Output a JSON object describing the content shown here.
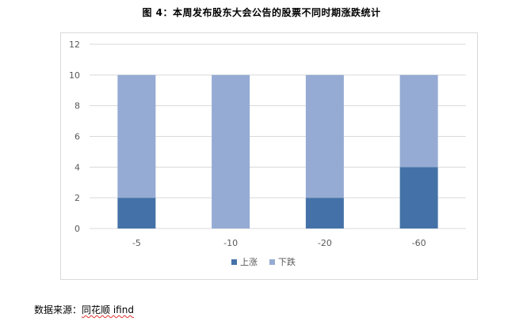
{
  "figure": {
    "title": "图 4：本周发布股东大会公告的股票不同时期涨跌统计"
  },
  "source": {
    "prefix": "数据来源：",
    "name": "同花顺 ifind"
  },
  "chart_data": {
    "type": "bar",
    "stacked": true,
    "categories": [
      "-5",
      "-10",
      "-20",
      "-60"
    ],
    "series": [
      {
        "name": "上涨",
        "values": [
          2,
          0,
          2,
          4
        ],
        "color": "#4472a8"
      },
      {
        "name": "下跌",
        "values": [
          8,
          10,
          8,
          6
        ],
        "color": "#95abd3"
      }
    ],
    "ylim": [
      0,
      12
    ],
    "yticks": [
      "0",
      "2",
      "4",
      "6",
      "8",
      "10",
      "12"
    ],
    "grid": true,
    "legend": "bottom-center"
  }
}
